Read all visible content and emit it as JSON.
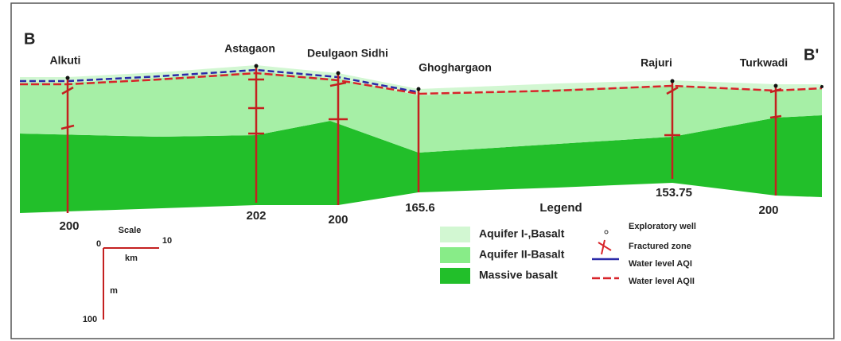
{
  "section": {
    "start": "B",
    "end": "B'"
  },
  "wells": [
    {
      "name": "Alkuti",
      "depth": 200
    },
    {
      "name": "Astagaon",
      "depth": 202
    },
    {
      "name": "Deulgaon Sidhi",
      "depth": 200
    },
    {
      "name": "Ghoghargaon",
      "depth": 165.6
    },
    {
      "name": "Rajuri",
      "depth": 153.75
    },
    {
      "name": "Turkwadi",
      "depth": 200
    }
  ],
  "scale": {
    "title": "Scale",
    "km_start": 0,
    "km_end": 10,
    "km_unit": "km",
    "m_unit": "m",
    "m_end": 100
  },
  "legend": {
    "title": "Legend",
    "units": [
      "Aquifer I-,Basalt",
      "Aquifer II-Basalt",
      "Massive basalt"
    ],
    "symbols": [
      "Exploratory well",
      "Fractured zone",
      "Water level AQI",
      "Water level AQII"
    ]
  }
}
